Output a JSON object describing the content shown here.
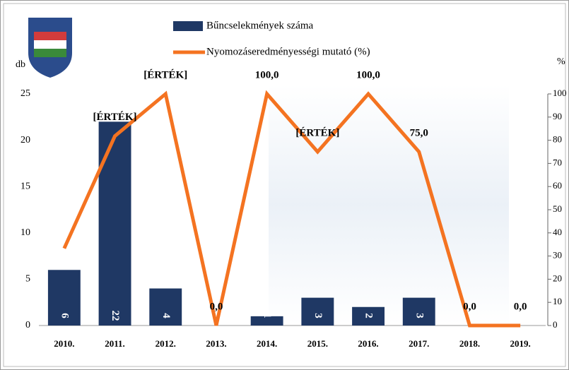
{
  "chart_data": {
    "type": "bar-line",
    "categories": [
      "2010.",
      "2011.",
      "2012.",
      "2013.",
      "2014.",
      "2015.",
      "2016.",
      "2017.",
      "2018.",
      "2019."
    ],
    "series": [
      {
        "name": "Bűncselekmények száma",
        "type": "bar",
        "color": "#1f3864",
        "values": [
          6,
          22,
          4,
          0,
          1,
          3,
          2,
          3,
          0,
          0
        ]
      },
      {
        "name": "Nyomozáseredményességi mutató (%)",
        "type": "line",
        "axis": "y2",
        "color": "#f47321",
        "values": [
          33.3,
          81.8,
          100,
          0,
          100,
          75,
          100,
          75,
          0,
          0
        ],
        "value_labels": [
          null,
          null,
          null,
          "0,0",
          "100,0",
          null,
          "100,0",
          "75,0",
          "0,0",
          "0,0"
        ]
      }
    ],
    "annotations": [
      {
        "text": "[ÉRTÉK]",
        "category": "2011."
      },
      {
        "text": "[ÉRTÉK]",
        "category": "2012."
      },
      {
        "text": "[ÉRTÉK]",
        "category": "2015."
      }
    ],
    "ylabel": "db",
    "y2label": "%",
    "ylim": [
      0,
      25
    ],
    "yticks": [
      0,
      5,
      10,
      15,
      20,
      25
    ],
    "y2lim": [
      0,
      100
    ],
    "y2ticks": [
      0,
      10,
      20,
      30,
      40,
      50,
      60,
      70,
      80,
      90,
      100
    ]
  }
}
